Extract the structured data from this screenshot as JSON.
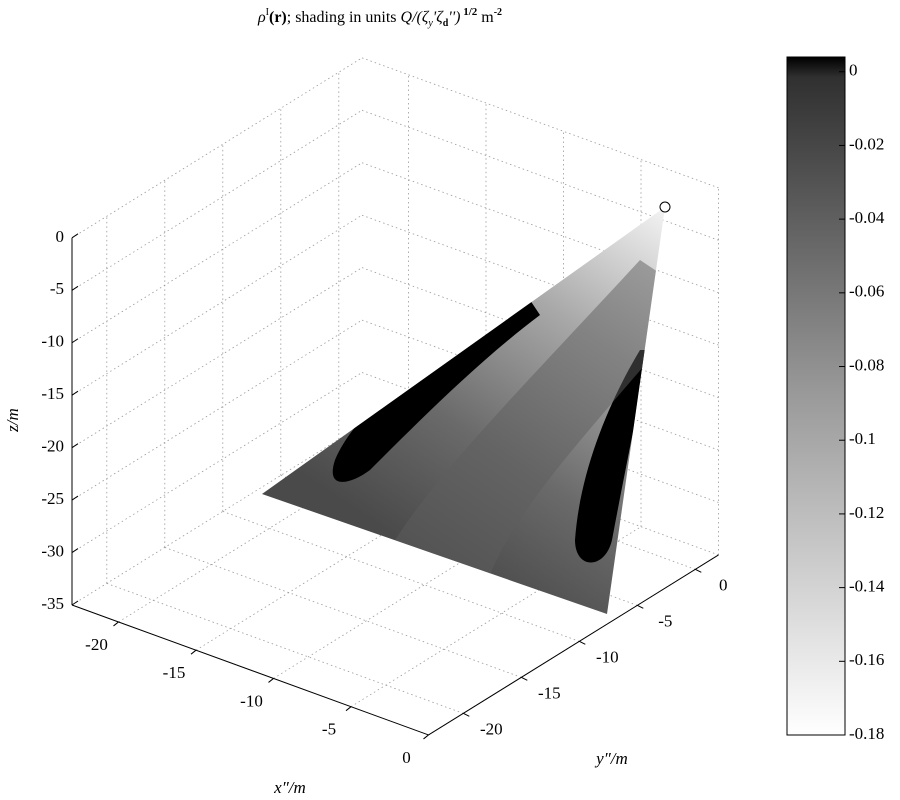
{
  "chart_data": {
    "type": "surface3d",
    "title_parts": [
      "ρ",
      "I",
      "(r)",
      "; shading in units ",
      "Q/(ζ",
      "y",
      "'ζ",
      "d",
      "'')",
      " 1/2",
      " m",
      "-2"
    ],
    "x_label": "x″/m",
    "y_label": "y″/m",
    "z_label": "z/m",
    "xlim": [
      -23,
      0
    ],
    "ylim": [
      -23,
      2
    ],
    "zlim": [
      -35,
      0
    ],
    "xticks": [
      -20,
      -15,
      -10,
      -5,
      0
    ],
    "yticks": [
      -20,
      -15,
      -10,
      -5,
      0
    ],
    "zticks": [
      0,
      -5,
      -10,
      -15,
      -20,
      -25,
      -30,
      -35
    ],
    "grid": true,
    "colorbar": {
      "clim": [
        -0.18,
        0.004
      ],
      "ticks": [
        0,
        -0.02,
        -0.04,
        -0.06,
        -0.08,
        -0.1,
        -0.12,
        -0.14,
        -0.16,
        -0.18
      ]
    }
  }
}
